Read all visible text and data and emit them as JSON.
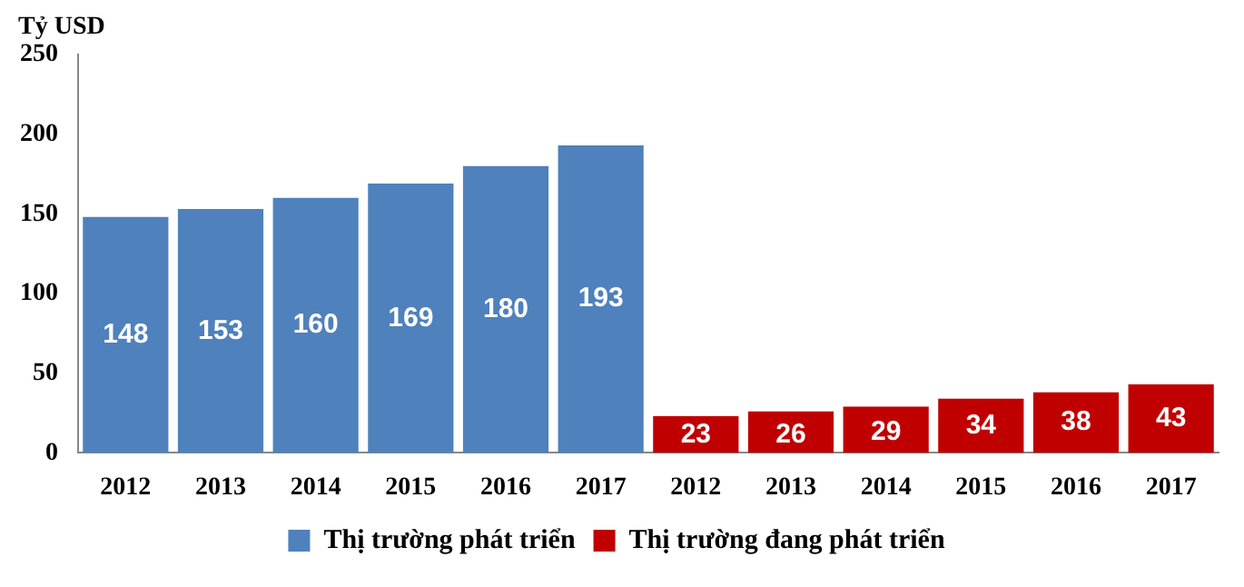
{
  "chart_data": {
    "type": "bar",
    "ylabel": "Tỷ USD",
    "categories": [
      "2012",
      "2013",
      "2014",
      "2015",
      "2016",
      "2017",
      "2012",
      "2013",
      "2014",
      "2015",
      "2016",
      "2017"
    ],
    "series": [
      {
        "name": "Thị trường phát triển",
        "color": "#4f81bd",
        "values": [
          148,
          153,
          160,
          169,
          180,
          193,
          null,
          null,
          null,
          null,
          null,
          null
        ]
      },
      {
        "name": "Thị trường đang phát triển",
        "color": "#c00000",
        "values": [
          null,
          null,
          null,
          null,
          null,
          null,
          23,
          26,
          29,
          34,
          38,
          43
        ]
      }
    ],
    "ylim": [
      0,
      250
    ],
    "yticks": [
      0,
      50,
      100,
      150,
      200,
      250
    ],
    "grid": false,
    "legend": "bottom",
    "data_labels": true
  }
}
